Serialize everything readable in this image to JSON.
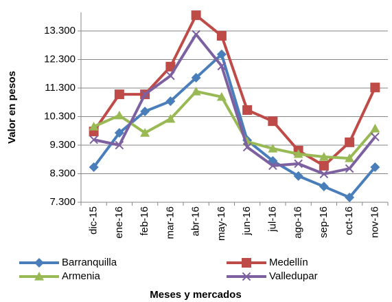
{
  "chart_data": {
    "type": "line",
    "x_label": "Meses y mercados",
    "y_label": "Valor en pesos",
    "categories": [
      "dic-15",
      "ene-16",
      "feb-16",
      "mar-16",
      "abr-16",
      "may-16",
      "jun-16",
      "jul-16",
      "ago-16",
      "sep-16",
      "oct-16",
      "nov-16"
    ],
    "series": [
      {
        "name": "Barranquilla",
        "color": "#4a7ebb",
        "marker": "diamond",
        "values": [
          8530,
          9730,
          10480,
          10840,
          11660,
          12480,
          9470,
          8750,
          8220,
          7850,
          7470,
          8530
        ]
      },
      {
        "name": "Medellín",
        "color": "#be4b48",
        "marker": "square",
        "values": [
          9780,
          11080,
          11080,
          12050,
          13850,
          13130,
          10530,
          10140,
          9110,
          8580,
          9400,
          11320
        ]
      },
      {
        "name": "Armenia",
        "color": "#98b954",
        "marker": "triangle",
        "values": [
          9950,
          10340,
          9730,
          10220,
          11180,
          10990,
          9420,
          9180,
          8990,
          8890,
          8840,
          9880
        ]
      },
      {
        "name": "Valledupar",
        "color": "#7d60a0",
        "marker": "x",
        "values": [
          9490,
          9300,
          11080,
          11730,
          13180,
          12070,
          9230,
          8580,
          8650,
          8290,
          8480,
          9590
        ]
      }
    ],
    "ylim": [
      7300,
      13950
    ],
    "yticks": [
      {
        "value": 7300,
        "label": "7.300"
      },
      {
        "value": 8300,
        "label": "8.300"
      },
      {
        "value": 9300,
        "label": "9.300"
      },
      {
        "value": 10300,
        "label": "10.300"
      },
      {
        "value": 11300,
        "label": "11.300"
      },
      {
        "value": 12300,
        "label": "12.300"
      },
      {
        "value": 13300,
        "label": "13.300"
      }
    ],
    "grid": true,
    "legend": "bottom"
  }
}
